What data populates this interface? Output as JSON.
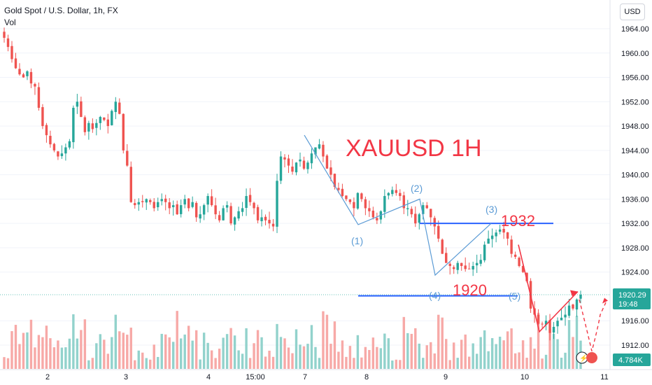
{
  "header": {
    "symbol": "Gold Spot / U.S. Dollar, 1h, FX",
    "volume_label": "Vol"
  },
  "currency_button": "USD",
  "price_axis": {
    "ticks": [
      "1964.00",
      "1960.00",
      "1956.00",
      "1952.00",
      "1948.00",
      "1944.00",
      "1940.00",
      "1936.00",
      "1932.00",
      "1928.00",
      "1924.00",
      "1916.00",
      "1912.00"
    ],
    "last_price": "1920.29",
    "countdown": "19:48",
    "volume_value": "4.784K"
  },
  "time_axis": {
    "labels": [
      "2",
      "3",
      "4",
      "15:00",
      "7",
      "8",
      "9",
      "10",
      "11"
    ]
  },
  "annotations": {
    "title": "XAUUSD 1H",
    "level_high": "1932",
    "level_low": "1920",
    "waves": [
      "(1)",
      "(2)",
      "(3)",
      "(4)",
      "(5)"
    ]
  },
  "colors": {
    "up": "#26a69a",
    "down": "#ef5350",
    "vol_up": "#92d2cc",
    "vol_down": "#f7a9a7",
    "drawing_blue": "#2962ff",
    "wave_blue": "#5b9bd5",
    "red_text": "#f23645",
    "price_tag": "#26a69a"
  },
  "chart_data": {
    "type": "candlestick",
    "title": "Gold Spot / U.S. Dollar, 1h, FX",
    "ylim": [
      1909,
      1967
    ],
    "y_ticks": [
      1912,
      1916,
      1924,
      1928,
      1932,
      1936,
      1940,
      1944,
      1948,
      1952,
      1956,
      1960,
      1964
    ],
    "x_labels": [
      "2",
      "3",
      "4",
      "15:00",
      "7",
      "8",
      "9",
      "10",
      "11"
    ],
    "close_path": [
      1962.5,
      1961,
      1959,
      1957.5,
      1956.5,
      1956,
      1957,
      1955,
      1954.5,
      1951,
      1948,
      1946.5,
      1945,
      1944,
      1943,
      1943.5,
      1944.5,
      1945.5,
      1951,
      1952,
      1949.5,
      1947,
      1948.5,
      1947.5,
      1948.5,
      1949.5,
      1949,
      1948,
      1950.5,
      1952,
      1950,
      1944,
      1941.5,
      1935.5,
      1935,
      1935.5,
      1935.5,
      1936,
      1935.5,
      1934.5,
      1935.5,
      1936,
      1935.5,
      1934.5,
      1935,
      1933.5,
      1935,
      1936,
      1934.5,
      1935.5,
      1933,
      1933.5,
      1935,
      1936.5,
      1935,
      1933.5,
      1932.5,
      1934.5,
      1935,
      1932,
      1933,
      1934,
      1934.5,
      1936.5,
      1935.5,
      1934.5,
      1932.5,
      1933,
      1932.5,
      1932,
      1931.5,
      1939,
      1943,
      1942.5,
      1941.5,
      1940.5,
      1942,
      1942.5,
      1941,
      1942,
      1943.5,
      1944.5,
      1945,
      1943,
      1941,
      1940,
      1938,
      1937.5,
      1936.5,
      1936,
      1935.5,
      1934.5,
      1937,
      1936,
      1934.5,
      1934,
      1933,
      1932.5,
      1934,
      1936.5,
      1937,
      1937.5,
      1937,
      1936.5,
      1934.5,
      1934.5,
      1933.5,
      1932,
      1933.5,
      1935,
      1934.5,
      1933,
      1931.5,
      1929.5,
      1927,
      1925.5,
      1925,
      1924.5,
      1925.5,
      1925,
      1924.5,
      1924.5,
      1925,
      1925.5,
      1926,
      1928.5,
      1929.5,
      1930,
      1930.5,
      1931,
      1930.5,
      1929.5,
      1927,
      1926.5,
      1925,
      1924,
      1922.5,
      1918,
      1917,
      1915.5,
      1915.5,
      1916,
      1914,
      1915,
      1916,
      1916.5,
      1917,
      1918.5,
      1918,
      1919.5,
      1920.29
    ],
    "volume_scale": "4.784K",
    "annotations": {
      "title": "XAUUSD 1H",
      "resistance": 1932,
      "support": 1920,
      "wave_labels": [
        "(1)",
        "(2)",
        "(3)",
        "(4)",
        "(5)"
      ]
    }
  }
}
